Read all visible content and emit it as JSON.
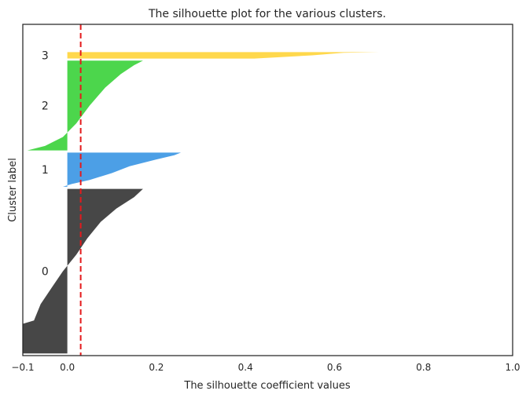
{
  "chart_data": {
    "type": "area",
    "title": "The silhouette plot for the various clusters.",
    "xlabel": "The silhouette coefficient values",
    "ylabel": "Cluster label",
    "xlim": [
      -0.1,
      1.0
    ],
    "ylim": [
      0,
      1550
    ],
    "x_ticks": [
      -0.1,
      0.0,
      0.2,
      0.4,
      0.6,
      0.8,
      1.0
    ],
    "x_tick_labels": [
      "−0.1",
      "0.0",
      "0.2",
      "0.4",
      "0.6",
      "0.8",
      "1.0"
    ],
    "grid": false,
    "average_silhouette_line": {
      "value": 0.03,
      "color": "#e41a1c",
      "style": "dashed"
    },
    "clusters": [
      {
        "label": "0",
        "color": "#474747",
        "y_lower": 10,
        "size": 770,
        "sorted_values_low_to_high": [
          {
            "q": 0.0,
            "v": -0.1
          },
          {
            "q": 0.18,
            "v": -0.1
          },
          {
            "q": 0.2,
            "v": -0.075
          },
          {
            "q": 0.3,
            "v": -0.06
          },
          {
            "q": 0.4,
            "v": -0.035
          },
          {
            "q": 0.5,
            "v": -0.01
          },
          {
            "q": 0.6,
            "v": 0.02
          },
          {
            "q": 0.7,
            "v": 0.045
          },
          {
            "q": 0.8,
            "v": 0.075
          },
          {
            "q": 0.88,
            "v": 0.11
          },
          {
            "q": 0.95,
            "v": 0.15
          },
          {
            "q": 1.0,
            "v": 0.17
          }
        ]
      },
      {
        "label": "1",
        "color": "#4c9fe6",
        "y_lower": 790,
        "size": 160,
        "sorted_values_low_to_high": [
          {
            "q": 0.0,
            "v": -0.01
          },
          {
            "q": 0.08,
            "v": 0.01
          },
          {
            "q": 0.2,
            "v": 0.05
          },
          {
            "q": 0.4,
            "v": 0.1
          },
          {
            "q": 0.6,
            "v": 0.14
          },
          {
            "q": 0.8,
            "v": 0.2
          },
          {
            "q": 0.92,
            "v": 0.24
          },
          {
            "q": 1.0,
            "v": 0.255
          }
        ]
      },
      {
        "label": "2",
        "color": "#4cd64c",
        "y_lower": 960,
        "size": 420,
        "sorted_values_low_to_high": [
          {
            "q": 0.0,
            "v": -0.09
          },
          {
            "q": 0.05,
            "v": -0.05
          },
          {
            "q": 0.15,
            "v": -0.01
          },
          {
            "q": 0.3,
            "v": 0.02
          },
          {
            "q": 0.5,
            "v": 0.05
          },
          {
            "q": 0.7,
            "v": 0.085
          },
          {
            "q": 0.85,
            "v": 0.12
          },
          {
            "q": 0.95,
            "v": 0.15
          },
          {
            "q": 1.0,
            "v": 0.17
          }
        ]
      },
      {
        "label": "3",
        "color": "#ffd84c",
        "y_lower": 1390,
        "size": 30,
        "sorted_values_low_to_high": [
          {
            "q": 0.0,
            "v": 0.42
          },
          {
            "q": 0.5,
            "v": 0.55
          },
          {
            "q": 0.9,
            "v": 0.62
          },
          {
            "q": 1.0,
            "v": 0.7
          }
        ]
      }
    ]
  }
}
